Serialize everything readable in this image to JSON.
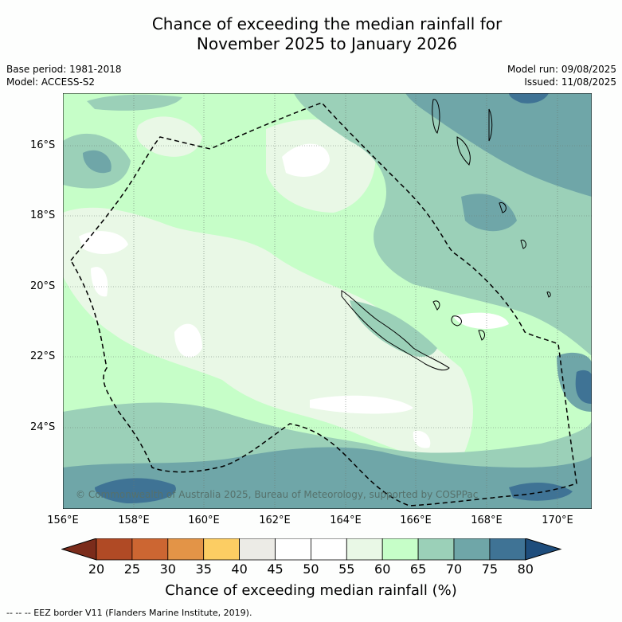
{
  "title_line1": "Chance of exceeding the median rainfall for",
  "title_line2": "November 2025 to January 2026",
  "base_period": "Base period: 1981-2018",
  "model": "Model: ACCESS-S2",
  "model_run": "Model run: 09/08/2025",
  "issued": "Issued: 11/08/2025",
  "lat_labels": [
    "16°S",
    "18°S",
    "20°S",
    "22°S",
    "24°S"
  ],
  "lon_labels": [
    "156°E",
    "158°E",
    "160°E",
    "162°E",
    "164°E",
    "166°E",
    "168°E",
    "170°E"
  ],
  "copyright": "© Commonwealth of Australia 2025, Bureau of Meteorology, supported by COSPPac",
  "colorbar": {
    "ticks": [
      "20",
      "25",
      "30",
      "35",
      "40",
      "45",
      "50",
      "55",
      "60",
      "65",
      "70",
      "75",
      "80"
    ],
    "colors": [
      "#7b2c1b",
      "#b04a25",
      "#cc6632",
      "#e39447",
      "#fccd63",
      "#ecebe6",
      "#ffffff",
      "#ffffff",
      "#e9f8e6",
      "#c6fec8",
      "#9bd0b8",
      "#6fa6a8",
      "#3f7395",
      "#1e4d7c"
    ],
    "label": "Chance of exceeding median rainfall (%)"
  },
  "legend_footer": "-- -- -- EEZ border V11 (Flanders Marine Institute, 2019).",
  "map_colors": {
    "c45_50": "#ffffff",
    "c55_60": "#e9f8e6",
    "c60_65": "#c6fec8",
    "c65_70": "#9bd0b8",
    "c70_75": "#6fa6a8",
    "c75_80": "#3f7395"
  }
}
